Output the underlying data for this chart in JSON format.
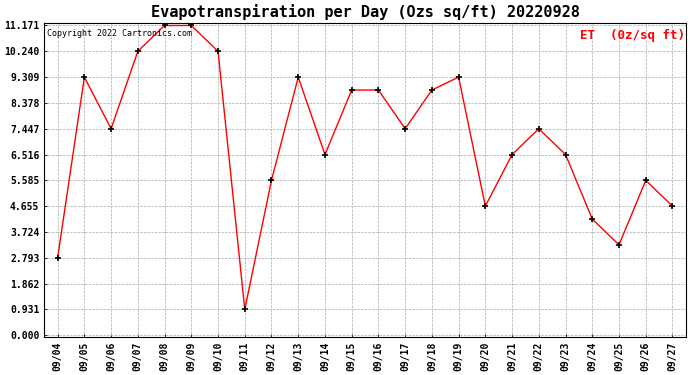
{
  "title": "Evapotranspiration per Day (Ozs sq/ft) 20220928",
  "copyright_text": "Copyright 2022 Cartronics.com",
  "legend_label": "ET  (0z/sq ft)",
  "dates": [
    "09/04",
    "09/05",
    "09/06",
    "09/07",
    "09/08",
    "09/09",
    "09/10",
    "09/11",
    "09/12",
    "09/13",
    "09/14",
    "09/15",
    "09/16",
    "09/17",
    "09/18",
    "09/19",
    "09/20",
    "09/21",
    "09/22",
    "09/23",
    "09/24",
    "09/25",
    "09/26",
    "09/27"
  ],
  "values": [
    2.793,
    9.309,
    7.447,
    10.24,
    11.171,
    11.171,
    10.24,
    0.931,
    5.585,
    9.309,
    6.516,
    8.843,
    8.843,
    7.447,
    8.843,
    9.309,
    4.655,
    6.516,
    7.447,
    6.516,
    4.19,
    3.259,
    5.585,
    4.655
  ],
  "yticks": [
    0.0,
    0.931,
    1.862,
    2.793,
    3.724,
    4.655,
    5.585,
    6.516,
    7.447,
    8.378,
    9.309,
    10.24,
    11.171
  ],
  "line_color": "red",
  "marker_color": "black",
  "background_color": "#ffffff",
  "grid_color": "#aaaaaa",
  "title_fontsize": 11,
  "copyright_fontsize": 6,
  "legend_fontsize": 9,
  "tick_fontsize": 7,
  "figsize": [
    6.9,
    3.75
  ],
  "dpi": 100
}
